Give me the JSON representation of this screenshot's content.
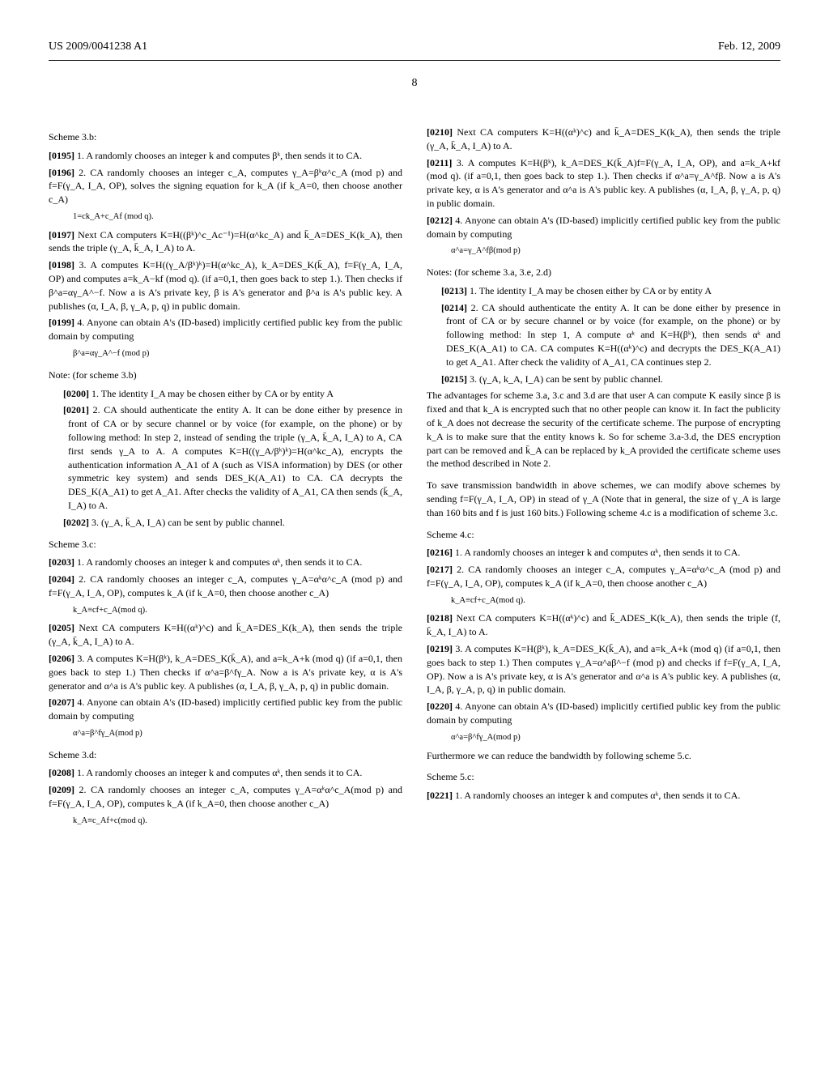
{
  "header": {
    "left": "US 2009/0041238 A1",
    "right": "Feb. 12, 2009"
  },
  "page_number": "8",
  "left_column": {
    "scheme_3b_title": "Scheme 3.b:",
    "p0195": "[0195]    1. A randomly chooses an integer k and computes βᵏ, then sends it to CA.",
    "p0196": "[0196]    2. CA randomly chooses an integer c_A, computes γ_A=βᵏα^c_A (mod p) and f=F(γ_A, I_A, OP), solves the signing equation for k_A (if k_A=0, then choose another c_A)",
    "formula_0196": "1=ck_A+c_Af (mod q).",
    "p0197": "[0197]    Next CA computers K=H((βᵏ)^c_Ac⁻¹)=H(α^kc_A) and k̄_A=DES_K(k_A), then sends the triple (γ_A, k̄_A, I_A) to A.",
    "p0198": "[0198]    3. A computes K=H((γ_A/βᵏ)ᵏ)=H(α^kc_A), k_A=DES_K(k̄_A), f=F(γ_A, I_A, OP) and computes a=k_A−kf (mod q). (if a=0,1, then goes back to step 1.). Then checks if β^a=αγ_A^−f. Now a is A's private key, β is A's generator and β^a is A's public key. A publishes (α, I_A, β, γ_A, p, q) in public domain.",
    "p0199": "[0199]    4. Anyone can obtain A's (ID-based) implicitly certified public key from the public domain by computing",
    "formula_0199": "β^a=αγ_A^−f (mod p)",
    "note_3b": "Note: (for scheme 3.b)",
    "p0200": "[0200]    1. The identity I_A may be chosen either by CA or by entity A",
    "p0201": "[0201]    2. CA should authenticate the entity A. It can be done either by presence in front of CA or by secure channel or by voice (for example, on the phone) or by following method: In step 2, instead of sending the triple (γ_A, k̄_A, I_A) to A, CA first sends γ_A to A. A computes K=H((γ_A/βᵏ)ᵏ)=H(α^kc_A), encrypts the authentication information A_A1 of A (such as VISA information) by DES (or other symmetric key system) and sends DES_K(A_A1) to CA. CA decrypts the DES_K(A_A1) to get A_A1. After checks the validity of A_A1, CA then sends (k̄_A, I_A) to A.",
    "p0202": "[0202]    3. (γ_A, k̄_A, I_A) can be sent by public channel.",
    "scheme_3c_title": "Scheme 3.c:",
    "p0203": "[0203]    1. A randomly chooses an integer k and computes αᵏ, then sends it to CA.",
    "p0204": "[0204]    2. CA randomly chooses an integer c_A, computes γ_A=αᵏα^c_A (mod p) and f=F(γ_A, I_A, OP), computes k_A (if k_A=0, then choose another c_A)",
    "formula_0204": "k_A≡cf+c_A(mod q).",
    "p0205": "[0205]    Next    CA    computers    K=H((αᵏ)^c)    and k̄_A=DES_K(k_A), then sends the triple (γ_A, k̄_A, I_A) to A.",
    "p0206": "[0206]    3. A computes K=H(βᵏ), k_A=DES_K(k̄_A), and a=k_A+k (mod q) (if a=0,1, then goes back to step 1.) Then checks if α^a=β^fγ_A. Now a is A's private key, α is A's generator and α^a is A's public key. A publishes (α, I_A, β, γ_A, p, q) in public domain.",
    "p0207": "[0207]    4. Anyone can obtain A's (ID-based) implicitly certified public key from the public domain by computing",
    "formula_0207": "α^a=β^fγ_A(mod p)",
    "scheme_3d_title": "Scheme 3.d:",
    "p0208": "[0208]    1. A randomly chooses an integer k and computes αᵏ, then sends it to CA.",
    "p0209": "[0209]    2. CA randomly chooses an integer c_A, computes γ_A=αᵏα^c_A(mod p) and f=F(γ_A, I_A, OP), computes k_A (if k_A=0, then choose another c_A)",
    "formula_0209": "k_A≡c_Af+c(mod q)."
  },
  "right_column": {
    "p0210": "[0210]    Next    CA    computers    K=H((αᵏ)^c)    and k̄_A=DES_K(k_A), then sends the triple (γ_A, k̄_A, I_A) to A.",
    "p0211": "[0211]    3. A computes K=H(βᵏ), k_A=DES_K(k̄_A)f=F(γ_A, I_A, OP), and a=k_A+kf (mod q). (if a=0,1, then goes back to step 1.). Then checks if α^a=γ_A^fβ. Now a is A's private key, α is A's generator and α^a is A's public key. A publishes (α, I_A, β, γ_A, p, q) in public domain.",
    "p0212": "[0212]    4. Anyone can obtain A's (ID-based) implicitly certified public key from the public domain by computing",
    "formula_0212": "α^a=γ_A^fβ(mod p)",
    "notes_title": "Notes: (for scheme 3.a, 3.e, 2.d)",
    "p0213": "[0213]    1. The identity I_A may be chosen either by CA or by entity A",
    "p0214": "[0214]    2. CA should authenticate the entity A. It can be done either by presence in front of CA or by secure channel or by voice (for example, on the phone) or by following method: In step 1, A compute αᵏ and K=H(βᵏ), then sends αᵏ and DES_K(A_A1) to CA. CA computes K=H((αᵏ)^c) and decrypts the DES_K(A_A1) to get A_A1. After check the validity of A_A1, CA continues step 2.",
    "p0215": "[0215]    3. (γ_A, k_A, I_A) can be sent by public channel.",
    "advantages": "The advantages for scheme 3.a, 3.c and 3.d are that user A can compute K easily since β is fixed and that k_A is encrypted such that no other people can know it. In fact the publicity of k_A does not decrease the security of the certificate scheme. The purpose of encrypting k_A is to make sure that the entity knows k. So for scheme 3.a-3.d, the DES encryption part can be removed and k̄_A can be replaced by k_A provided the certificate scheme uses the method described in Note 2.",
    "bandwidth": "To save transmission bandwidth in above schemes, we can modify above schemes by sending f=F(γ_A, I_A, OP) in stead of γ_A (Note that in general, the size of γ_A is large than 160 bits and f is just 160 bits.) Following scheme 4.c is a modification of scheme 3.c.",
    "scheme_4c_title": "Scheme 4.c:",
    "p0216": "[0216]    1. A randomly chooses an integer k and computes αᵏ, then sends it to CA.",
    "p0217": "[0217]    2. CA randomly chooses an integer c_A, computes γ_A=αᵏα^c_A (mod p) and f=F(γ_A, I_A, OP), computes k_A (if k_A=0, then choose another c_A)",
    "formula_0217": "k_A≡cf+c_A(mod q).",
    "p0218": "[0218]    Next    CA    computers    K=H((αᵏ)^c)    and k̄_ADES_K(k_A), then sends the triple (f, k̄_A, I_A) to A.",
    "p0219": "[0219]    3. A computes K=H(βᵏ), k_A=DES_K(k̄_A), and a=k_A+k (mod q) (if a=0,1, then goes back to step 1.) Then computes γ_A=α^aβ^−f (mod p) and checks if f=F(γ_A, I_A, OP). Now a is A's private key, α is A's generator and α^a is A's public key. A publishes (α, I_A, β, γ_A, p, q) in public domain.",
    "p0220": "[0220]    4. Anyone can obtain A's (ID-based) implicitly certified public key from the public domain by computing",
    "formula_0220": "α^a=β^fγ_A(mod p)",
    "furthermore": "Furthermore we can reduce the bandwidth by following scheme 5.c.",
    "scheme_5c_title": "Scheme 5.c:",
    "p0221": "[0221]    1. A randomly chooses an integer k and computes αᵏ, then sends it to CA."
  }
}
